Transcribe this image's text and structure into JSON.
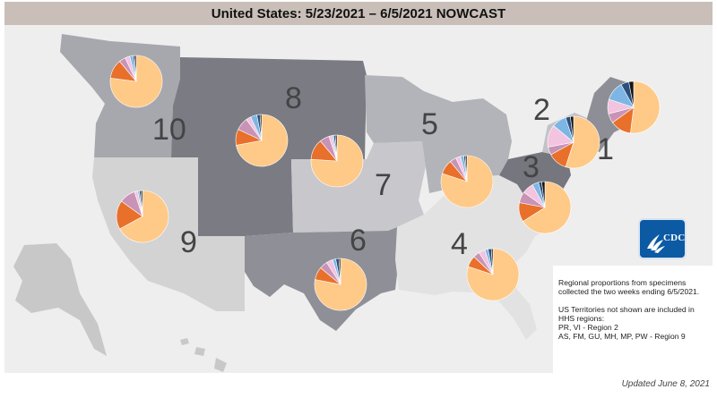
{
  "title": "United States: 5/23/2021 – 6/5/2021 NOWCAST",
  "colors": {
    "region_light": "#d3d3d3",
    "region_mid": "#a7a8ae",
    "region_dark": "#7a7b83",
    "region_darker": "#6b6c74",
    "pie_palette": [
      "#ffc987",
      "#e8702a",
      "#c993b6",
      "#f2c4e0",
      "#7db6e4",
      "#2c4f7c",
      "#151515"
    ]
  },
  "regions": [
    {
      "number": "1",
      "slices": [
        0.52,
        0.13,
        0.06,
        0.09,
        0.12,
        0.05,
        0.03
      ]
    },
    {
      "number": "2",
      "slices": [
        0.55,
        0.12,
        0.05,
        0.14,
        0.09,
        0.03,
        0.02
      ]
    },
    {
      "number": "3",
      "slices": [
        0.66,
        0.12,
        0.07,
        0.07,
        0.04,
        0.02,
        0.02
      ]
    },
    {
      "number": "4",
      "slices": [
        0.8,
        0.07,
        0.04,
        0.04,
        0.02,
        0.02,
        0.01
      ]
    },
    {
      "number": "5",
      "slices": [
        0.8,
        0.09,
        0.04,
        0.03,
        0.02,
        0.01,
        0.01
      ]
    },
    {
      "number": "6",
      "slices": [
        0.78,
        0.08,
        0.05,
        0.04,
        0.02,
        0.02,
        0.01
      ]
    },
    {
      "number": "7",
      "slices": [
        0.76,
        0.13,
        0.06,
        0.02,
        0.01,
        0.01,
        0.01
      ]
    },
    {
      "number": "8",
      "slices": [
        0.72,
        0.1,
        0.08,
        0.03,
        0.04,
        0.02,
        0.01
      ]
    },
    {
      "number": "9",
      "slices": [
        0.67,
        0.18,
        0.1,
        0.02,
        0.01,
        0.01,
        0.01
      ]
    },
    {
      "number": "10",
      "slices": [
        0.77,
        0.12,
        0.04,
        0.03,
        0.02,
        0.01,
        0.01
      ]
    }
  ],
  "info": {
    "proportions_line1": "Regional proportions from specimens",
    "proportions_line2": "collected the two weeks ending 6/5/2021.",
    "territories_line1": "US Territories not shown are included in",
    "territories_line2": "HHS regions:",
    "territories_line3": "PR, VI - Region 2",
    "territories_line4": "AS, FM, GU, MH, MP, PW - Region 9"
  },
  "logo_text": "CDC",
  "updated": "Updated June 8, 2021"
}
